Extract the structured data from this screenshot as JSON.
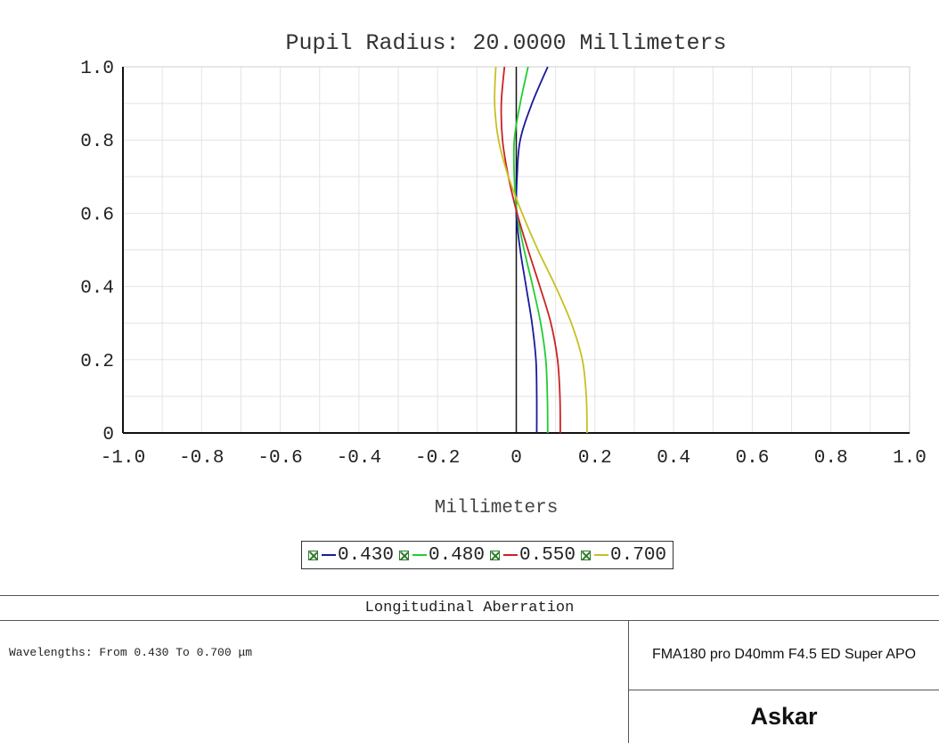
{
  "chart_data": {
    "type": "line",
    "title": "Pupil Radius: 20.0000 Millimeters",
    "xlabel": "Millimeters",
    "ylabel": "",
    "xlim": [
      -1.0,
      1.0
    ],
    "ylim": [
      0,
      1.0
    ],
    "x_ticks": [
      -1.0,
      -0.8,
      -0.6,
      -0.4,
      -0.2,
      0,
      0.2,
      0.4,
      0.6,
      0.8,
      1.0
    ],
    "x_tick_labels": [
      "-1.0",
      "-0.8",
      "-0.6",
      "-0.4",
      "-0.2",
      "0",
      "0.2",
      "0.4",
      "0.6",
      "0.8",
      "1.0"
    ],
    "y_ticks": [
      0,
      0.2,
      0.4,
      0.6,
      0.8,
      1.0
    ],
    "y_tick_labels": [
      "0",
      "0.2",
      "0.4",
      "0.6",
      "0.8",
      "1.0"
    ],
    "grid": true,
    "legend_position": "bottom",
    "series": [
      {
        "name": "0.430",
        "color": "#1a1a9a",
        "points": [
          [
            0.052,
            0.0
          ],
          [
            0.052,
            0.1
          ],
          [
            0.05,
            0.2
          ],
          [
            0.04,
            0.3
          ],
          [
            0.025,
            0.4
          ],
          [
            0.01,
            0.5
          ],
          [
            0.0,
            0.6
          ],
          [
            0.002,
            0.7
          ],
          [
            0.01,
            0.8
          ],
          [
            0.04,
            0.9
          ],
          [
            0.08,
            1.0
          ]
        ]
      },
      {
        "name": "0.480",
        "color": "#22cc33",
        "points": [
          [
            0.08,
            0.0
          ],
          [
            0.079,
            0.1
          ],
          [
            0.075,
            0.2
          ],
          [
            0.062,
            0.3
          ],
          [
            0.042,
            0.4
          ],
          [
            0.02,
            0.5
          ],
          [
            0.002,
            0.6
          ],
          [
            -0.005,
            0.7
          ],
          [
            -0.005,
            0.8
          ],
          [
            0.01,
            0.9
          ],
          [
            0.03,
            1.0
          ]
        ]
      },
      {
        "name": "0.550",
        "color": "#cc2222",
        "points": [
          [
            0.112,
            0.0
          ],
          [
            0.111,
            0.1
          ],
          [
            0.105,
            0.2
          ],
          [
            0.088,
            0.3
          ],
          [
            0.06,
            0.4
          ],
          [
            0.03,
            0.5
          ],
          [
            0.002,
            0.6
          ],
          [
            -0.02,
            0.7
          ],
          [
            -0.035,
            0.8
          ],
          [
            -0.038,
            0.9
          ],
          [
            -0.03,
            1.0
          ]
        ]
      },
      {
        "name": "0.700",
        "color": "#c8c020",
        "points": [
          [
            0.18,
            0.0
          ],
          [
            0.178,
            0.1
          ],
          [
            0.168,
            0.2
          ],
          [
            0.14,
            0.3
          ],
          [
            0.1,
            0.4
          ],
          [
            0.055,
            0.5
          ],
          [
            0.015,
            0.6
          ],
          [
            -0.02,
            0.7
          ],
          [
            -0.045,
            0.8
          ],
          [
            -0.055,
            0.9
          ],
          [
            -0.052,
            1.0
          ]
        ]
      }
    ]
  },
  "footer": {
    "title": "Longitudinal Aberration",
    "wavelengths": "Wavelengths: From 0.430 To 0.700 μm",
    "lens_name": "FMA180 pro D40mm F4.5 ED Super APO",
    "brand": "Askar"
  }
}
